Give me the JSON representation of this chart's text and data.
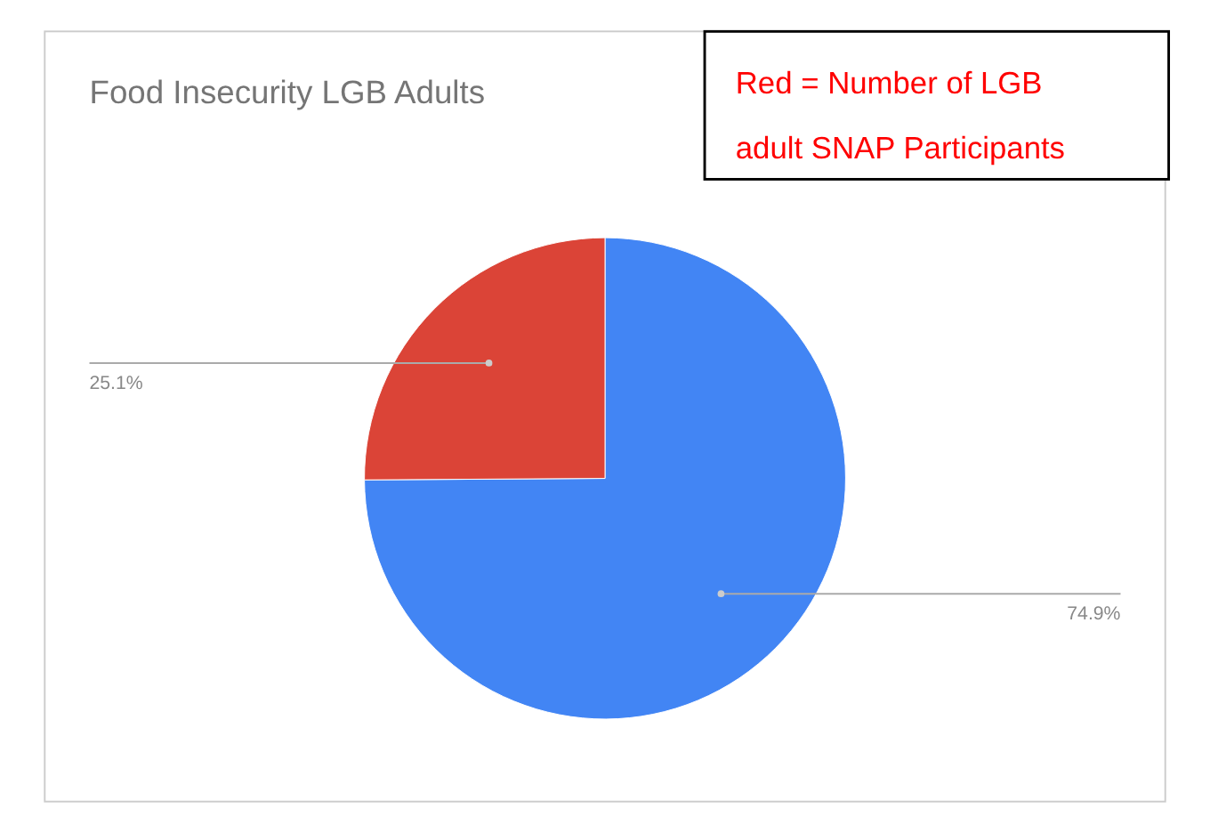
{
  "chart_data": {
    "type": "pie",
    "title": "Food Insecurity LGB Adults",
    "categories": [
      null,
      null
    ],
    "values": [
      74.9,
      25.1
    ],
    "colors": [
      "#4285f4",
      "#db4437"
    ],
    "value_labels": [
      "74.9%",
      "25.1%"
    ],
    "annotations": [
      "Red = Number of LGB adult SNAP Participants"
    ]
  }
}
